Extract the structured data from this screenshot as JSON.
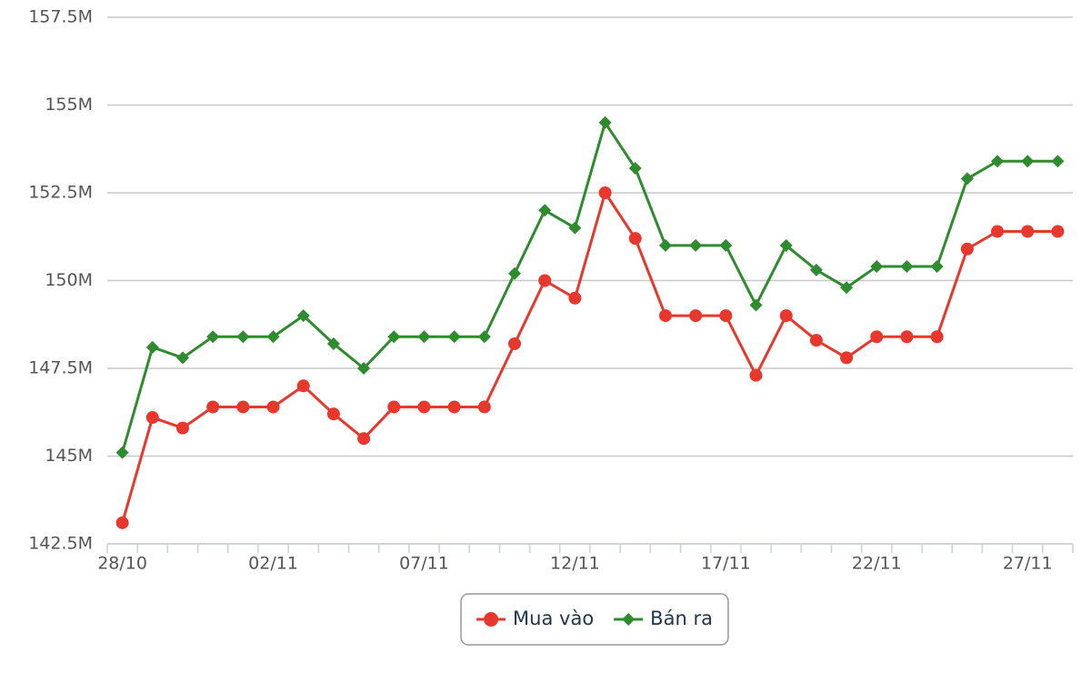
{
  "chart_data": {
    "type": "line",
    "categories": [
      "28/10",
      null,
      null,
      null,
      null,
      "02/11",
      null,
      null,
      null,
      null,
      "07/11",
      null,
      null,
      null,
      null,
      "12/11",
      null,
      null,
      null,
      null,
      "17/11",
      null,
      null,
      null,
      null,
      "22/11",
      null,
      null,
      null,
      null,
      "27/11",
      null
    ],
    "series": [
      {
        "name": "Mua vào",
        "color": "#e8382d",
        "marker": "circle",
        "values": [
          143.1,
          146.1,
          145.8,
          146.4,
          146.4,
          146.4,
          147.0,
          146.2,
          145.5,
          146.4,
          146.4,
          146.4,
          146.4,
          148.2,
          150.0,
          149.5,
          152.5,
          151.2,
          149.0,
          149.0,
          149.0,
          147.3,
          149.0,
          148.3,
          147.8,
          148.4,
          148.4,
          148.4,
          150.9,
          151.4,
          151.4,
          151.4
        ]
      },
      {
        "name": "Bán ra",
        "color": "#2e8b2e",
        "marker": "diamond",
        "values": [
          145.1,
          148.1,
          147.8,
          148.4,
          148.4,
          148.4,
          149.0,
          148.2,
          147.5,
          148.4,
          148.4,
          148.4,
          148.4,
          150.2,
          152.0,
          151.5,
          154.5,
          153.2,
          151.0,
          151.0,
          151.0,
          149.3,
          151.0,
          150.3,
          149.8,
          150.4,
          150.4,
          150.4,
          152.9,
          153.4,
          153.4,
          153.4
        ]
      }
    ],
    "ylim": [
      142.5,
      157.5
    ],
    "yticks": [
      {
        "value": 142.5,
        "label": "142.5M"
      },
      {
        "value": 145,
        "label": "145M"
      },
      {
        "value": 147.5,
        "label": "147.5M"
      },
      {
        "value": 150,
        "label": "150M"
      },
      {
        "value": 152.5,
        "label": "152.5M"
      },
      {
        "value": 155,
        "label": "155M"
      },
      {
        "value": 157.5,
        "label": "157.5M"
      }
    ],
    "grid": true,
    "legend": "bottom"
  }
}
